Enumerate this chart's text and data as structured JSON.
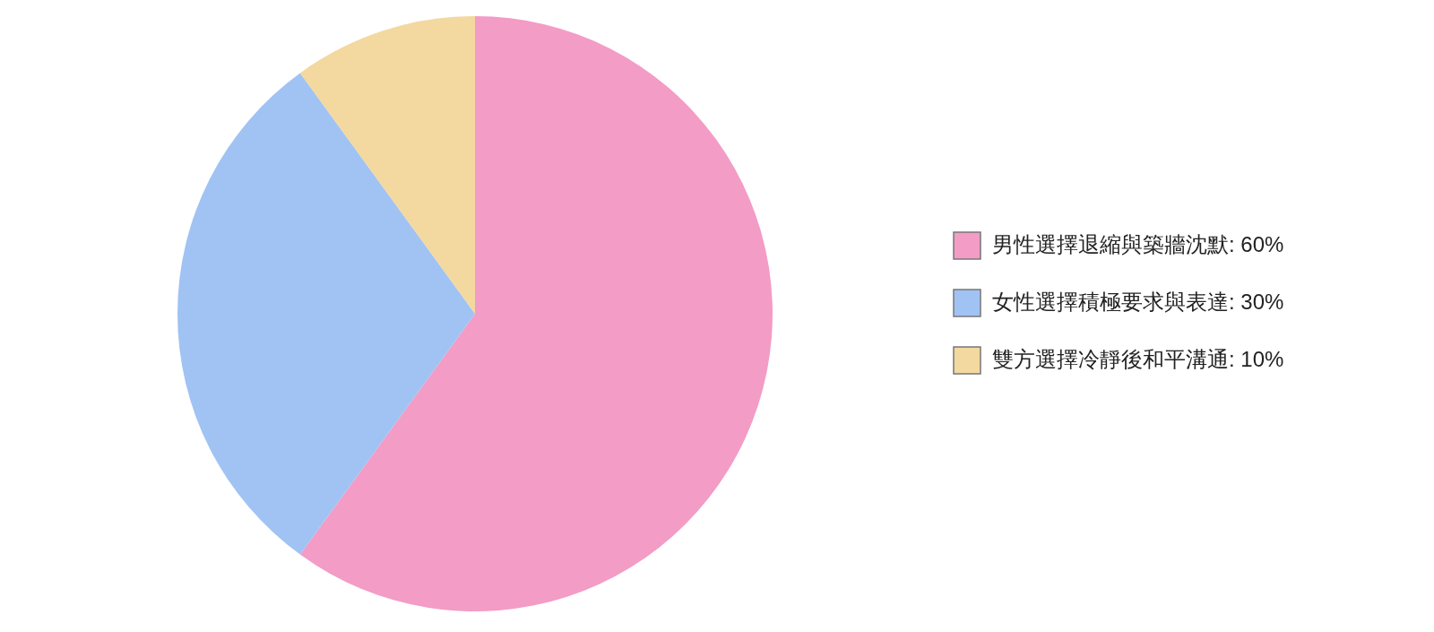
{
  "chart_data": {
    "type": "pie",
    "categories": [
      "男性選擇退縮與築牆沈默: 60%",
      "女性選擇積極要求與表達: 30%",
      "雙方選擇冷靜後和平溝通: 10%"
    ],
    "values": [
      60,
      30,
      10
    ],
    "colors": [
      "#f29cc6",
      "#a0c3f3",
      "#f3d89f"
    ],
    "legend": "right"
  }
}
